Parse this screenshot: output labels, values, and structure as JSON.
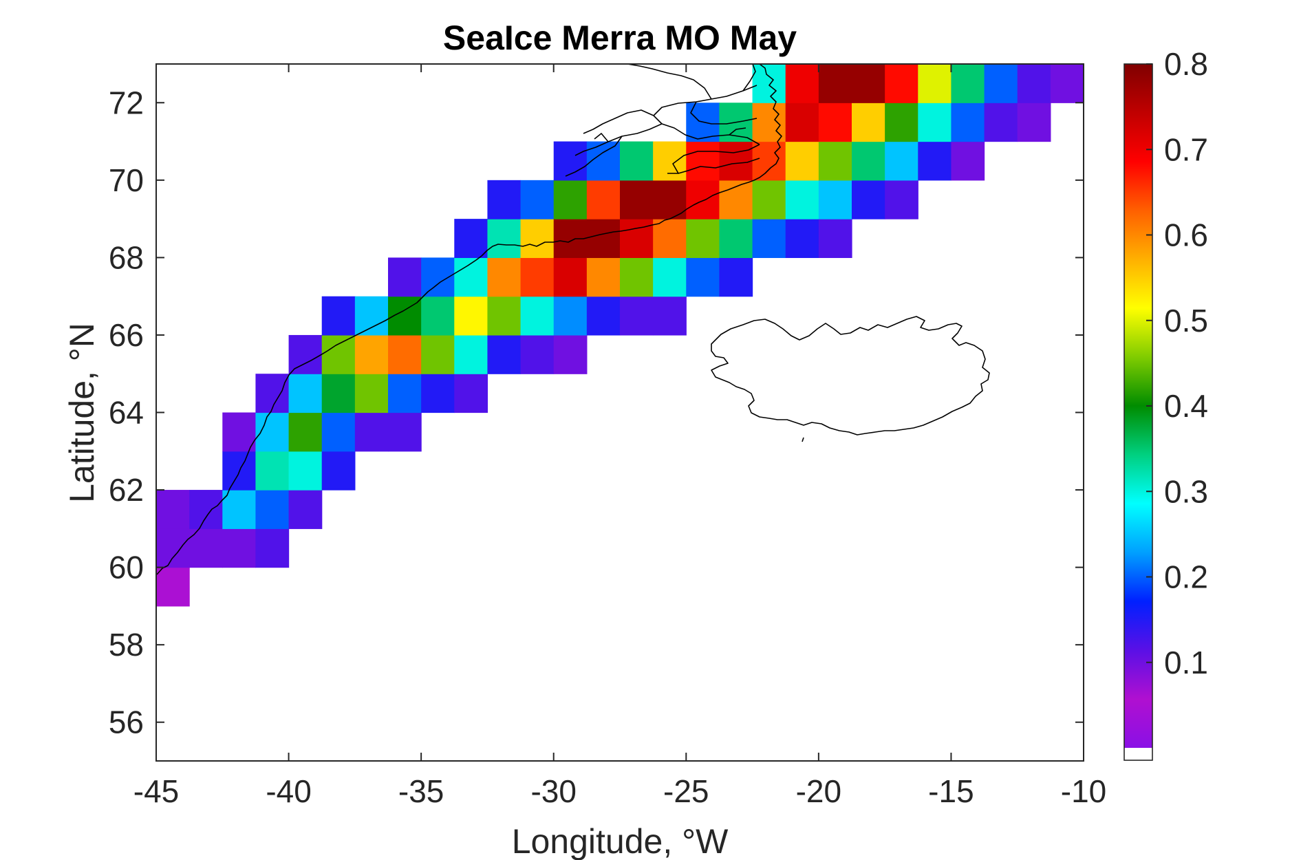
{
  "chart_data": {
    "type": "heatmap",
    "title": "SeaIce Merra MO May",
    "xlabel": "Longitude, °W",
    "ylabel": "Latitude, °N",
    "xlim": [
      -45,
      -10
    ],
    "ylim": [
      55,
      73
    ],
    "x_ticks": [
      "-45",
      "-40",
      "-35",
      "-30",
      "-25",
      "-20",
      "-15",
      "-10"
    ],
    "y_ticks": [
      "56",
      "58",
      "60",
      "62",
      "64",
      "66",
      "68",
      "70",
      "72"
    ],
    "colorbar": {
      "range": [
        0,
        0.8
      ],
      "ticks": [
        "0.1",
        "0.2",
        "0.3",
        "0.4",
        "0.5",
        "0.6",
        "0.7",
        "0.8"
      ],
      "colormap": [
        "#8a10e6",
        "#b010d0",
        "#5a10e6",
        "#0020ff",
        "#00a0ff",
        "#00ffff",
        "#00d080",
        "#008c00",
        "#80cc00",
        "#ffff00",
        "#ffb000",
        "#ff6000",
        "#ff0000",
        "#c00000",
        "#800000"
      ]
    },
    "cell_size_deg": {
      "lon": 1.25,
      "lat": 1.0
    },
    "coastlines": [
      "Greenland east coast",
      "Iceland"
    ],
    "grid": false,
    "cells": [
      [
        -45.0,
        59.0,
        0.05
      ],
      [
        -45.0,
        60.0,
        0.1
      ],
      [
        -45.0,
        61.0,
        0.1
      ],
      [
        -43.75,
        60.0,
        0.1
      ],
      [
        -43.75,
        61.0,
        0.12
      ],
      [
        -42.5,
        60.0,
        0.1
      ],
      [
        -42.5,
        61.0,
        0.25
      ],
      [
        -42.5,
        62.0,
        0.15
      ],
      [
        -42.5,
        63.0,
        0.1
      ],
      [
        -41.25,
        60.0,
        0.12
      ],
      [
        -41.25,
        61.0,
        0.2
      ],
      [
        -41.25,
        62.0,
        0.32
      ],
      [
        -41.25,
        63.0,
        0.25
      ],
      [
        -41.25,
        64.0,
        0.12
      ],
      [
        -40.0,
        61.0,
        0.12
      ],
      [
        -40.0,
        62.0,
        0.3
      ],
      [
        -40.0,
        63.0,
        0.42
      ],
      [
        -40.0,
        64.0,
        0.25
      ],
      [
        -40.0,
        65.0,
        0.12
      ],
      [
        -38.75,
        62.0,
        0.15
      ],
      [
        -38.75,
        63.0,
        0.2
      ],
      [
        -38.75,
        64.0,
        0.38
      ],
      [
        -38.75,
        65.0,
        0.45
      ],
      [
        -38.75,
        66.0,
        0.15
      ],
      [
        -37.5,
        63.0,
        0.12
      ],
      [
        -37.5,
        64.0,
        0.45
      ],
      [
        -37.5,
        65.0,
        0.58
      ],
      [
        -37.5,
        66.0,
        0.25
      ],
      [
        -36.25,
        63.0,
        0.12
      ],
      [
        -36.25,
        64.0,
        0.2
      ],
      [
        -36.25,
        65.0,
        0.62
      ],
      [
        -36.25,
        66.0,
        0.4
      ],
      [
        -36.25,
        67.0,
        0.12
      ],
      [
        -35.0,
        64.0,
        0.15
      ],
      [
        -35.0,
        65.0,
        0.45
      ],
      [
        -35.0,
        66.0,
        0.35
      ],
      [
        -35.0,
        67.0,
        0.2
      ],
      [
        -33.75,
        64.0,
        0.12
      ],
      [
        -33.75,
        65.0,
        0.3
      ],
      [
        -33.75,
        66.0,
        0.52
      ],
      [
        -33.75,
        67.0,
        0.3
      ],
      [
        -33.75,
        68.0,
        0.15
      ],
      [
        -32.5,
        65.0,
        0.15
      ],
      [
        -32.5,
        66.0,
        0.45
      ],
      [
        -32.5,
        67.0,
        0.6
      ],
      [
        -32.5,
        68.0,
        0.32
      ],
      [
        -32.5,
        69.0,
        0.15
      ],
      [
        -31.25,
        65.0,
        0.12
      ],
      [
        -31.25,
        66.0,
        0.3
      ],
      [
        -31.25,
        67.0,
        0.65
      ],
      [
        -31.25,
        68.0,
        0.55
      ],
      [
        -31.25,
        69.0,
        0.2
      ],
      [
        -30.0,
        65.0,
        0.1
      ],
      [
        -30.0,
        66.0,
        0.22
      ],
      [
        -30.0,
        67.0,
        0.72
      ],
      [
        -30.0,
        68.0,
        0.78
      ],
      [
        -30.0,
        69.0,
        0.42
      ],
      [
        -30.0,
        70.0,
        0.15
      ],
      [
        -28.75,
        66.0,
        0.15
      ],
      [
        -28.75,
        67.0,
        0.6
      ],
      [
        -28.75,
        68.0,
        0.78
      ],
      [
        -28.75,
        69.0,
        0.65
      ],
      [
        -28.75,
        70.0,
        0.2
      ],
      [
        -27.5,
        66.0,
        0.12
      ],
      [
        -27.5,
        67.0,
        0.45
      ],
      [
        -27.5,
        68.0,
        0.72
      ],
      [
        -27.5,
        69.0,
        0.78
      ],
      [
        -27.5,
        70.0,
        0.35
      ],
      [
        -26.25,
        66.0,
        0.12
      ],
      [
        -26.25,
        67.0,
        0.3
      ],
      [
        -26.25,
        68.0,
        0.62
      ],
      [
        -26.25,
        69.0,
        0.78
      ],
      [
        -26.25,
        70.0,
        0.55
      ],
      [
        -25.0,
        67.0,
        0.2
      ],
      [
        -25.0,
        68.0,
        0.45
      ],
      [
        -25.0,
        69.0,
        0.7
      ],
      [
        -25.0,
        70.0,
        0.68
      ],
      [
        -25.0,
        71.0,
        0.2
      ],
      [
        -23.75,
        67.0,
        0.15
      ],
      [
        -23.75,
        68.0,
        0.35
      ],
      [
        -23.75,
        69.0,
        0.6
      ],
      [
        -23.75,
        70.0,
        0.72
      ],
      [
        -23.75,
        71.0,
        0.35
      ],
      [
        -22.5,
        68.0,
        0.2
      ],
      [
        -22.5,
        69.0,
        0.45
      ],
      [
        -22.5,
        70.0,
        0.65
      ],
      [
        -22.5,
        71.0,
        0.6
      ],
      [
        -22.5,
        72.0,
        0.3
      ],
      [
        -21.25,
        68.0,
        0.15
      ],
      [
        -21.25,
        69.0,
        0.3
      ],
      [
        -21.25,
        70.0,
        0.55
      ],
      [
        -21.25,
        71.0,
        0.72
      ],
      [
        -21.25,
        72.0,
        0.7
      ],
      [
        -20.0,
        68.0,
        0.12
      ],
      [
        -20.0,
        69.0,
        0.25
      ],
      [
        -20.0,
        70.0,
        0.45
      ],
      [
        -20.0,
        71.0,
        0.68
      ],
      [
        -20.0,
        72.0,
        0.78
      ],
      [
        -18.75,
        69.0,
        0.15
      ],
      [
        -18.75,
        70.0,
        0.35
      ],
      [
        -18.75,
        71.0,
        0.55
      ],
      [
        -18.75,
        72.0,
        0.78
      ],
      [
        -17.5,
        69.0,
        0.12
      ],
      [
        -17.5,
        70.0,
        0.25
      ],
      [
        -17.5,
        71.0,
        0.42
      ],
      [
        -17.5,
        72.0,
        0.68
      ],
      [
        -16.25,
        70.0,
        0.15
      ],
      [
        -16.25,
        71.0,
        0.3
      ],
      [
        -16.25,
        72.0,
        0.5
      ],
      [
        -15.0,
        70.0,
        0.1
      ],
      [
        -15.0,
        71.0,
        0.2
      ],
      [
        -15.0,
        72.0,
        0.35
      ],
      [
        -13.75,
        71.0,
        0.12
      ],
      [
        -13.75,
        72.0,
        0.2
      ],
      [
        -12.5,
        71.0,
        0.1
      ],
      [
        -12.5,
        72.0,
        0.12
      ],
      [
        -11.25,
        72.0,
        0.1
      ]
    ]
  }
}
